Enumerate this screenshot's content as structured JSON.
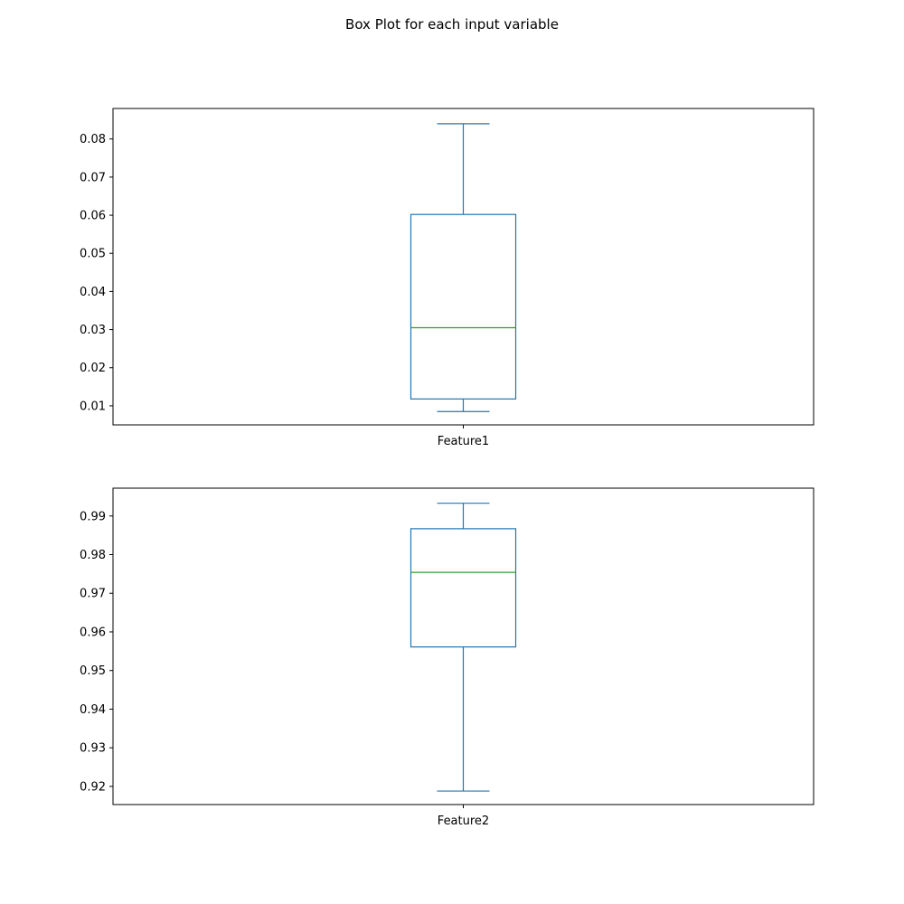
{
  "title": "Box Plot for each input variable",
  "colors": {
    "box": "#1f77b4",
    "median": "#2ca02c",
    "axis": "#000000",
    "background": "#ffffff"
  },
  "chart_data": [
    {
      "type": "box",
      "category": "Feature1",
      "ylim": [
        0.005,
        0.088
      ],
      "yticks": [
        0.01,
        0.02,
        0.03,
        0.04,
        0.05,
        0.06,
        0.07,
        0.08
      ],
      "ytick_labels": [
        "0.01",
        "0.02",
        "0.03",
        "0.04",
        "0.05",
        "0.06",
        "0.07",
        "0.08"
      ],
      "whisker_low": 0.0085,
      "q1": 0.0118,
      "median": 0.0305,
      "q3": 0.0602,
      "whisker_high": 0.084,
      "grid": false
    },
    {
      "type": "box",
      "category": "Feature2",
      "ylim": [
        0.9153,
        0.9972
      ],
      "yticks": [
        0.92,
        0.93,
        0.94,
        0.95,
        0.96,
        0.97,
        0.98,
        0.99
      ],
      "ytick_labels": [
        "0.92",
        "0.93",
        "0.94",
        "0.95",
        "0.96",
        "0.97",
        "0.98",
        "0.99"
      ],
      "whisker_low": 0.9188,
      "q1": 0.9561,
      "median": 0.9754,
      "q3": 0.9867,
      "whisker_high": 0.9933,
      "grid": false
    }
  ]
}
